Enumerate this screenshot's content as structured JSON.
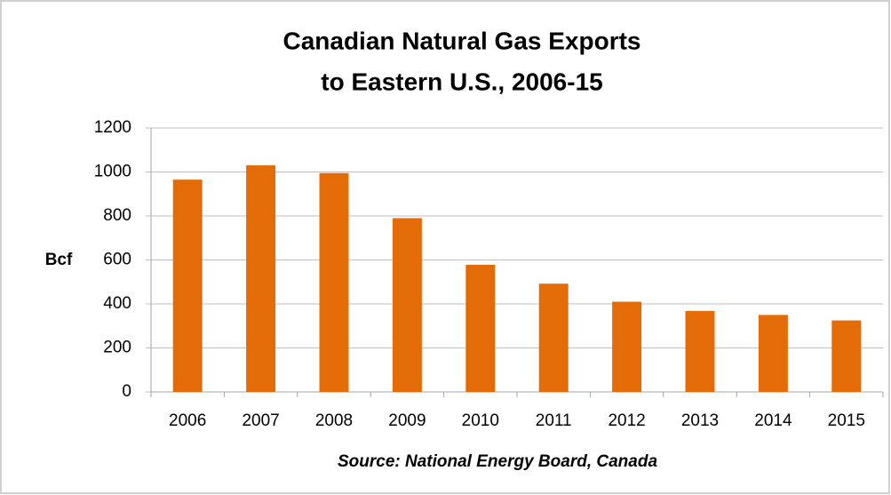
{
  "chart_data": {
    "type": "bar",
    "title": [
      "Canadian Natural Gas Exports",
      "to Eastern U.S., 2006-15"
    ],
    "y_label": "Bcf",
    "annotation": "Source: National Energy Board, Canada",
    "categories": [
      "2006",
      "2007",
      "2008",
      "2009",
      "2010",
      "2011",
      "2012",
      "2013",
      "2014",
      "2015"
    ],
    "values": [
      965,
      1030,
      995,
      790,
      578,
      492,
      410,
      368,
      350,
      325
    ],
    "color": "#e36c09",
    "ylim": [
      0,
      1200
    ],
    "yticks": [
      0,
      200,
      400,
      600,
      800,
      1000,
      1200
    ],
    "grid": true
  }
}
